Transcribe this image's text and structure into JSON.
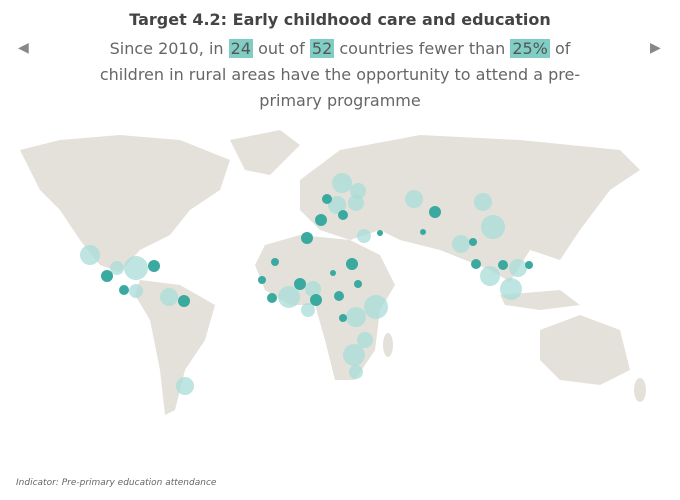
{
  "header": {
    "title": "Target 4.2: Early childhood care and education",
    "sentence": {
      "before": "Since 2010, in",
      "count": "24",
      "middle": "out of",
      "total": "52",
      "after": "countries fewer than",
      "share": "25%",
      "end": "of children in rural areas have the opportunity to attend a pre-primary programme"
    }
  },
  "footer": {
    "label": "Indicator:",
    "text": "Pre-primary education attendance"
  }
}
